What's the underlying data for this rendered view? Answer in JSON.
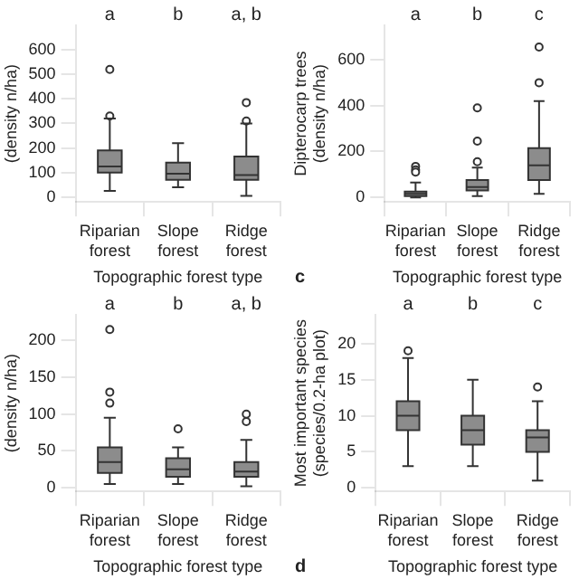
{
  "chart_data": [
    {
      "type": "box",
      "ylabel": "(density n/ha)",
      "xlabel": "Topographic forest type",
      "categories": [
        "Riparian forest",
        "Slope forest",
        "Ridge forest"
      ],
      "color": "#8c8c8c",
      "ylim": [
        -20,
        700
      ],
      "yticks": [
        0,
        100,
        200,
        300,
        400,
        500,
        600
      ],
      "legend": false,
      "boxes": [
        {
          "low": 25,
          "q1": 100,
          "median": 125,
          "q3": 190,
          "high": 320,
          "outliers": [
            330,
            520
          ]
        },
        {
          "low": 40,
          "q1": 70,
          "median": 95,
          "q3": 140,
          "high": 220
        },
        {
          "low": 5,
          "q1": 70,
          "median": 90,
          "q3": 165,
          "high": 300,
          "outliers": [
            310,
            385
          ]
        }
      ],
      "annotations": [
        "a",
        "b",
        "a, b"
      ]
    },
    {
      "type": "box",
      "ylabel": "Dipterocarp trees\n(density n/ha)",
      "xlabel": "Topographic forest type",
      "categories": [
        "Riparian forest",
        "Slope forest",
        "Ridge forest"
      ],
      "color": "#8c8c8c",
      "ylim": [
        -20,
        750
      ],
      "yticks": [
        0,
        200,
        400,
        600
      ],
      "legend": false,
      "boxes": [
        {
          "low": 0,
          "q1": 5,
          "median": 15,
          "q3": 25,
          "high": 65,
          "outliers": [
            110,
            120,
            135
          ]
        },
        {
          "low": 5,
          "q1": 30,
          "median": 45,
          "q3": 75,
          "high": 130,
          "outliers": [
            155,
            245,
            390
          ]
        },
        {
          "low": 15,
          "q1": 75,
          "median": 140,
          "q3": 215,
          "high": 420,
          "outliers": [
            500,
            655
          ]
        }
      ],
      "annotations": [
        "a",
        "b",
        "c",
        "c"
      ]
    },
    {
      "type": "box",
      "ylabel": "(density n/ha)",
      "xlabel": "Topographic forest type",
      "categories": [
        "Riparian forest",
        "Slope forest",
        "Ridge forest"
      ],
      "color": "#8c8c8c",
      "ylim": [
        -5,
        235
      ],
      "yticks": [
        0,
        50,
        100,
        150,
        200
      ],
      "legend": false,
      "boxes": [
        {
          "low": 5,
          "q1": 20,
          "median": 35,
          "q3": 55,
          "high": 95,
          "outliers": [
            115,
            130,
            215
          ]
        },
        {
          "low": 5,
          "q1": 15,
          "median": 25,
          "q3": 40,
          "high": 55,
          "outliers": [
            80
          ]
        },
        {
          "low": 2,
          "q1": 15,
          "median": 22,
          "q3": 35,
          "high": 65,
          "outliers": [
            90,
            100
          ]
        }
      ],
      "annotations": [
        "a",
        "b",
        "a, b"
      ]
    },
    {
      "type": "box",
      "ylabel": "Most important species\n(species/0.2-ha plot)",
      "xlabel": "Topographic forest type",
      "categories": [
        "Riparian forest",
        "Slope forest",
        "Ridge forest"
      ],
      "color": "#8c8c8c",
      "ylim": [
        -0.5,
        24
      ],
      "yticks": [
        0,
        5,
        10,
        15,
        20
      ],
      "legend": false,
      "boxes": [
        {
          "low": 3,
          "q1": 8,
          "median": 10,
          "q3": 12,
          "high": 18,
          "outliers": [
            19
          ]
        },
        {
          "low": 3,
          "q1": 6,
          "median": 8,
          "q3": 10,
          "high": 15
        },
        {
          "low": 1,
          "q1": 5,
          "median": 7,
          "q3": 8,
          "high": 12,
          "outliers": [
            14
          ]
        }
      ],
      "annotations": [
        "a",
        "b",
        "c",
        "d"
      ]
    }
  ]
}
